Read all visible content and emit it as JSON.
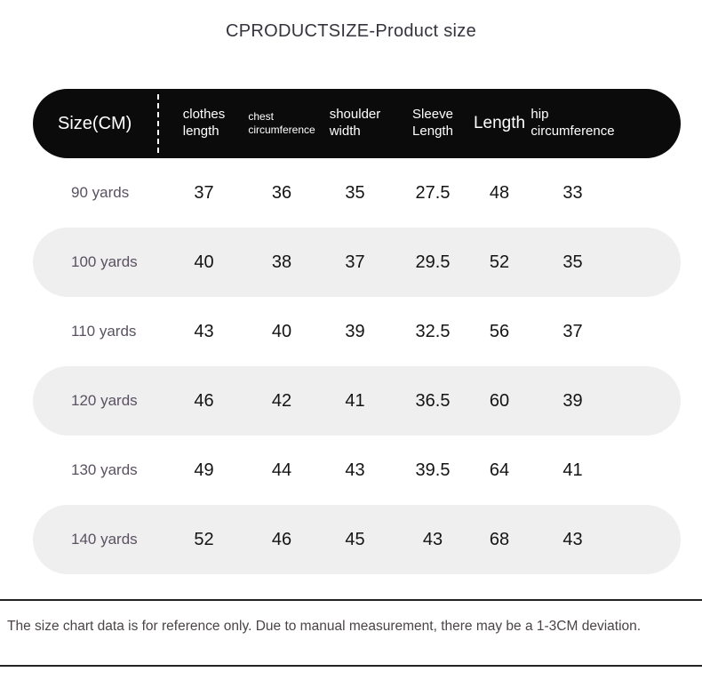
{
  "title": "CPRODUCTSIZE-Product size",
  "header": {
    "size_label": "Size(CM)",
    "columns": [
      {
        "name": "clothes length",
        "lines": [
          "clothes",
          "length"
        ]
      },
      {
        "name": "chest circumference",
        "lines": [
          "chest",
          "circumference"
        ]
      },
      {
        "name": "shoulder width",
        "lines": [
          "shoulder",
          "width"
        ]
      },
      {
        "name": "Sleeve Length",
        "lines": [
          "Sleeve",
          "Length"
        ]
      },
      {
        "name": "Length",
        "lines": [
          "Length"
        ]
      },
      {
        "name": "hip circumference",
        "lines": [
          "hip",
          "circumference"
        ]
      }
    ]
  },
  "chart_data": {
    "type": "table",
    "title": "CPRODUCTSIZE-Product size",
    "unit": "CM",
    "columns": [
      "Size(CM)",
      "clothes length",
      "chest circumference",
      "shoulder width",
      "Sleeve Length",
      "Length",
      "hip circumference"
    ],
    "rows": [
      [
        "90 yards",
        37,
        36,
        35,
        27.5,
        48,
        33
      ],
      [
        "100 yards",
        40,
        38,
        37,
        29.5,
        52,
        35
      ],
      [
        "110 yards",
        43,
        40,
        39,
        32.5,
        56,
        37
      ],
      [
        "120 yards",
        46,
        42,
        41,
        36.5,
        60,
        39
      ],
      [
        "130 yards",
        49,
        44,
        43,
        39.5,
        64,
        41
      ],
      [
        "140 yards",
        52,
        46,
        45,
        43,
        68,
        43
      ]
    ],
    "shaded_row_indices": [
      1,
      3,
      5
    ]
  },
  "footer": {
    "note": "The size chart data is for reference only. Due to manual measurement, there may be a 1-3CM deviation."
  },
  "colors": {
    "header_bg": "#0b0b0b",
    "header_text": "#ffffff",
    "shaded_row_bg": "#efeff0",
    "value_text": "#141414",
    "size_label_text": "#5a5161",
    "title_text": "#34343d",
    "note_text": "#4b4545",
    "rule_line": "#232323"
  }
}
